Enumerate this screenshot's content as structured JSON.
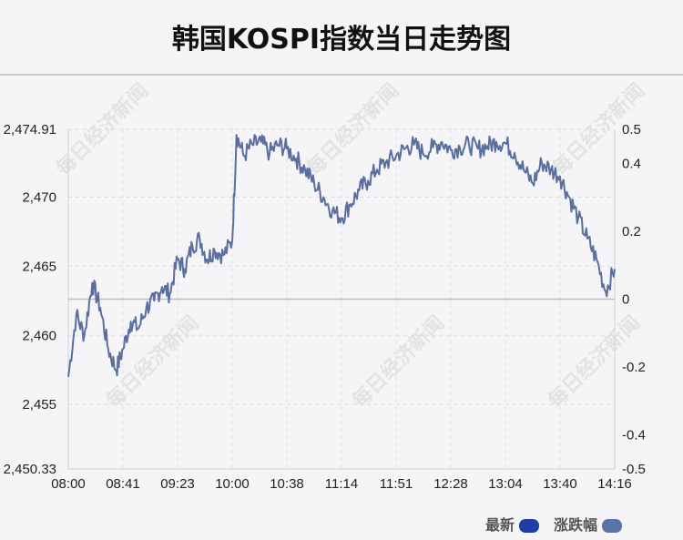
{
  "title": "韩国KOSPI指数当日走势图",
  "watermark_text": "每日经济新闻",
  "legend": [
    {
      "label": "最新",
      "color": "#1f3fa6"
    },
    {
      "label": "涨跌幅",
      "color": "#5b73a6"
    }
  ],
  "chart_data": {
    "type": "line",
    "title": "韩国KOSPI指数当日走势图",
    "x_tick_labels": [
      "08:00",
      "08:41",
      "09:23",
      "10:00",
      "10:38",
      "11:14",
      "11:51",
      "12:28",
      "13:04",
      "13:40",
      "14:16"
    ],
    "y_left_tick_labels": [
      "2,474.91",
      "2,470",
      "2,465",
      "2,460",
      "2,455",
      "2,450.33"
    ],
    "y_left_ticks": [
      2474.91,
      2470,
      2465,
      2460,
      2455,
      2450.33
    ],
    "y_left_range": [
      2450.33,
      2474.91
    ],
    "y_right_tick_labels": [
      "0.5",
      "0.4",
      "0.2",
      "0",
      "-0.2",
      "-0.4",
      "-0.5"
    ],
    "y_right_ticks": [
      0.5,
      0.4,
      0.2,
      0,
      -0.2,
      -0.4,
      -0.5
    ],
    "y_right_range": [
      -0.5,
      0.5
    ],
    "baseline": 2462.62,
    "line_color": "#5b6f9e",
    "grid": true,
    "series": [
      {
        "name": "最新",
        "x": [
          "08:00",
          "08:06",
          "08:12",
          "08:18",
          "08:24",
          "08:30",
          "08:36",
          "08:41",
          "08:47",
          "08:53",
          "08:59",
          "09:05",
          "09:11",
          "09:17",
          "09:23",
          "09:28",
          "09:33",
          "09:38",
          "09:43",
          "09:48",
          "09:54",
          "10:00",
          "10:03",
          "10:08",
          "10:14",
          "10:20",
          "10:26",
          "10:32",
          "10:38",
          "10:44",
          "10:50",
          "10:56",
          "11:02",
          "11:08",
          "11:14",
          "11:20",
          "11:26",
          "11:32",
          "11:38",
          "11:44",
          "11:51",
          "11:57",
          "12:03",
          "12:09",
          "12:16",
          "12:22",
          "12:28",
          "12:34",
          "12:40",
          "12:46",
          "12:52",
          "12:58",
          "13:04",
          "13:10",
          "13:16",
          "13:22",
          "13:28",
          "13:34",
          "13:40",
          "13:46",
          "13:52",
          "13:58",
          "14:04",
          "14:10",
          "14:16"
        ],
        "values": [
          2457.0,
          2461.5,
          2460.0,
          2463.8,
          2462.0,
          2459.0,
          2457.5,
          2459.0,
          2461.0,
          2460.5,
          2462.0,
          2462.5,
          2463.5,
          2463.0,
          2465.5,
          2464.8,
          2466.5,
          2467.0,
          2465.5,
          2466.2,
          2465.8,
          2466.8,
          2474.5,
          2473.0,
          2473.8,
          2474.0,
          2473.2,
          2473.8,
          2473.5,
          2472.8,
          2472.0,
          2471.0,
          2470.0,
          2469.0,
          2468.5,
          2469.5,
          2470.5,
          2471.2,
          2472.0,
          2472.5,
          2473.0,
          2473.5,
          2473.8,
          2473.2,
          2473.6,
          2474.0,
          2473.4,
          2473.6,
          2473.8,
          2473.5,
          2473.7,
          2474.0,
          2473.9,
          2473.2,
          2472.0,
          2471.0,
          2472.5,
          2472.0,
          2471.5,
          2470.0,
          2468.5,
          2467.0,
          2465.5,
          2463.2,
          2464.8
        ]
      }
    ]
  }
}
